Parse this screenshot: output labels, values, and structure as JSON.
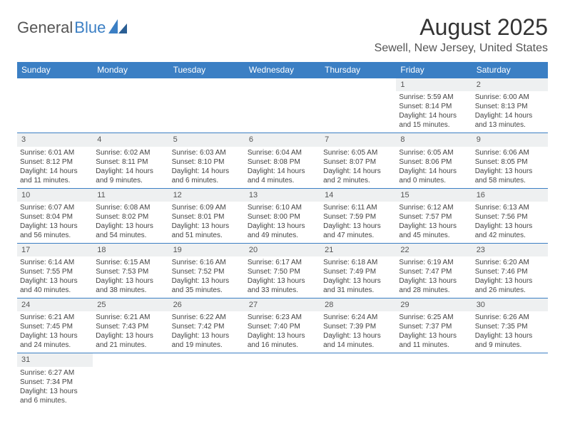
{
  "logo": {
    "general": "General",
    "blue": "Blue"
  },
  "title": "August 2025",
  "location": "Sewell, New Jersey, United States",
  "colors": {
    "header_bg": "#3b7fc4",
    "header_text": "#ffffff",
    "daynum_bg": "#eef0f1",
    "border": "#3b7fc4",
    "logo_blue": "#3b7fc4"
  },
  "dayHeaders": [
    "Sunday",
    "Monday",
    "Tuesday",
    "Wednesday",
    "Thursday",
    "Friday",
    "Saturday"
  ],
  "weeks": [
    [
      null,
      null,
      null,
      null,
      null,
      {
        "n": "1",
        "sr": "Sunrise: 5:59 AM",
        "ss": "Sunset: 8:14 PM",
        "dl": "Daylight: 14 hours and 15 minutes."
      },
      {
        "n": "2",
        "sr": "Sunrise: 6:00 AM",
        "ss": "Sunset: 8:13 PM",
        "dl": "Daylight: 14 hours and 13 minutes."
      }
    ],
    [
      {
        "n": "3",
        "sr": "Sunrise: 6:01 AM",
        "ss": "Sunset: 8:12 PM",
        "dl": "Daylight: 14 hours and 11 minutes."
      },
      {
        "n": "4",
        "sr": "Sunrise: 6:02 AM",
        "ss": "Sunset: 8:11 PM",
        "dl": "Daylight: 14 hours and 9 minutes."
      },
      {
        "n": "5",
        "sr": "Sunrise: 6:03 AM",
        "ss": "Sunset: 8:10 PM",
        "dl": "Daylight: 14 hours and 6 minutes."
      },
      {
        "n": "6",
        "sr": "Sunrise: 6:04 AM",
        "ss": "Sunset: 8:08 PM",
        "dl": "Daylight: 14 hours and 4 minutes."
      },
      {
        "n": "7",
        "sr": "Sunrise: 6:05 AM",
        "ss": "Sunset: 8:07 PM",
        "dl": "Daylight: 14 hours and 2 minutes."
      },
      {
        "n": "8",
        "sr": "Sunrise: 6:05 AM",
        "ss": "Sunset: 8:06 PM",
        "dl": "Daylight: 14 hours and 0 minutes."
      },
      {
        "n": "9",
        "sr": "Sunrise: 6:06 AM",
        "ss": "Sunset: 8:05 PM",
        "dl": "Daylight: 13 hours and 58 minutes."
      }
    ],
    [
      {
        "n": "10",
        "sr": "Sunrise: 6:07 AM",
        "ss": "Sunset: 8:04 PM",
        "dl": "Daylight: 13 hours and 56 minutes."
      },
      {
        "n": "11",
        "sr": "Sunrise: 6:08 AM",
        "ss": "Sunset: 8:02 PM",
        "dl": "Daylight: 13 hours and 54 minutes."
      },
      {
        "n": "12",
        "sr": "Sunrise: 6:09 AM",
        "ss": "Sunset: 8:01 PM",
        "dl": "Daylight: 13 hours and 51 minutes."
      },
      {
        "n": "13",
        "sr": "Sunrise: 6:10 AM",
        "ss": "Sunset: 8:00 PM",
        "dl": "Daylight: 13 hours and 49 minutes."
      },
      {
        "n": "14",
        "sr": "Sunrise: 6:11 AM",
        "ss": "Sunset: 7:59 PM",
        "dl": "Daylight: 13 hours and 47 minutes."
      },
      {
        "n": "15",
        "sr": "Sunrise: 6:12 AM",
        "ss": "Sunset: 7:57 PM",
        "dl": "Daylight: 13 hours and 45 minutes."
      },
      {
        "n": "16",
        "sr": "Sunrise: 6:13 AM",
        "ss": "Sunset: 7:56 PM",
        "dl": "Daylight: 13 hours and 42 minutes."
      }
    ],
    [
      {
        "n": "17",
        "sr": "Sunrise: 6:14 AM",
        "ss": "Sunset: 7:55 PM",
        "dl": "Daylight: 13 hours and 40 minutes."
      },
      {
        "n": "18",
        "sr": "Sunrise: 6:15 AM",
        "ss": "Sunset: 7:53 PM",
        "dl": "Daylight: 13 hours and 38 minutes."
      },
      {
        "n": "19",
        "sr": "Sunrise: 6:16 AM",
        "ss": "Sunset: 7:52 PM",
        "dl": "Daylight: 13 hours and 35 minutes."
      },
      {
        "n": "20",
        "sr": "Sunrise: 6:17 AM",
        "ss": "Sunset: 7:50 PM",
        "dl": "Daylight: 13 hours and 33 minutes."
      },
      {
        "n": "21",
        "sr": "Sunrise: 6:18 AM",
        "ss": "Sunset: 7:49 PM",
        "dl": "Daylight: 13 hours and 31 minutes."
      },
      {
        "n": "22",
        "sr": "Sunrise: 6:19 AM",
        "ss": "Sunset: 7:47 PM",
        "dl": "Daylight: 13 hours and 28 minutes."
      },
      {
        "n": "23",
        "sr": "Sunrise: 6:20 AM",
        "ss": "Sunset: 7:46 PM",
        "dl": "Daylight: 13 hours and 26 minutes."
      }
    ],
    [
      {
        "n": "24",
        "sr": "Sunrise: 6:21 AM",
        "ss": "Sunset: 7:45 PM",
        "dl": "Daylight: 13 hours and 24 minutes."
      },
      {
        "n": "25",
        "sr": "Sunrise: 6:21 AM",
        "ss": "Sunset: 7:43 PM",
        "dl": "Daylight: 13 hours and 21 minutes."
      },
      {
        "n": "26",
        "sr": "Sunrise: 6:22 AM",
        "ss": "Sunset: 7:42 PM",
        "dl": "Daylight: 13 hours and 19 minutes."
      },
      {
        "n": "27",
        "sr": "Sunrise: 6:23 AM",
        "ss": "Sunset: 7:40 PM",
        "dl": "Daylight: 13 hours and 16 minutes."
      },
      {
        "n": "28",
        "sr": "Sunrise: 6:24 AM",
        "ss": "Sunset: 7:39 PM",
        "dl": "Daylight: 13 hours and 14 minutes."
      },
      {
        "n": "29",
        "sr": "Sunrise: 6:25 AM",
        "ss": "Sunset: 7:37 PM",
        "dl": "Daylight: 13 hours and 11 minutes."
      },
      {
        "n": "30",
        "sr": "Sunrise: 6:26 AM",
        "ss": "Sunset: 7:35 PM",
        "dl": "Daylight: 13 hours and 9 minutes."
      }
    ],
    [
      {
        "n": "31",
        "sr": "Sunrise: 6:27 AM",
        "ss": "Sunset: 7:34 PM",
        "dl": "Daylight: 13 hours and 6 minutes."
      },
      null,
      null,
      null,
      null,
      null,
      null
    ]
  ]
}
